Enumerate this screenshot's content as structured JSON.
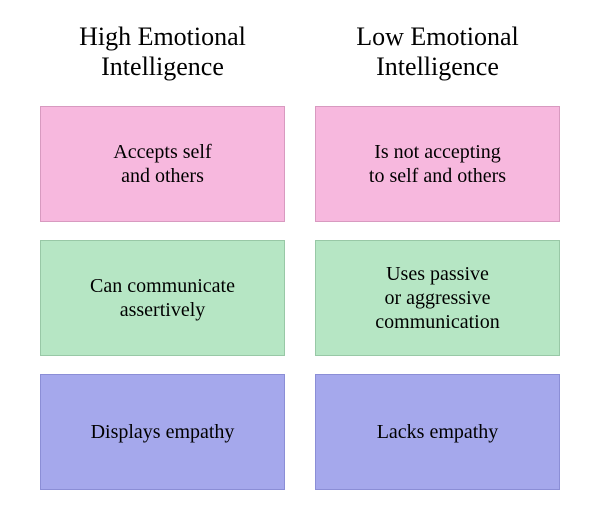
{
  "layout": {
    "background_color": "#ffffff",
    "column_gap": 30,
    "row_gap": 18,
    "title_fontsize": 26,
    "card_fontsize": 20,
    "font_family": "Georgia, 'Times New Roman', serif",
    "text_color": "#000000"
  },
  "row_styles": [
    {
      "fill": "#f7b8de",
      "border": "#d89ac0"
    },
    {
      "fill": "#b6e6c4",
      "border": "#98c8a6"
    },
    {
      "fill": "#a5a8ec",
      "border": "#8b8ed6"
    }
  ],
  "columns": [
    {
      "title": "High Emotional\nIntelligence",
      "cards": [
        "Accepts self\nand others",
        "Can communicate\nassertively",
        "Displays empathy"
      ]
    },
    {
      "title": "Low Emotional\nIntelligence",
      "cards": [
        "Is not accepting\nto self and others",
        "Uses passive\nor aggressive\ncommunication",
        "Lacks empathy"
      ]
    }
  ]
}
